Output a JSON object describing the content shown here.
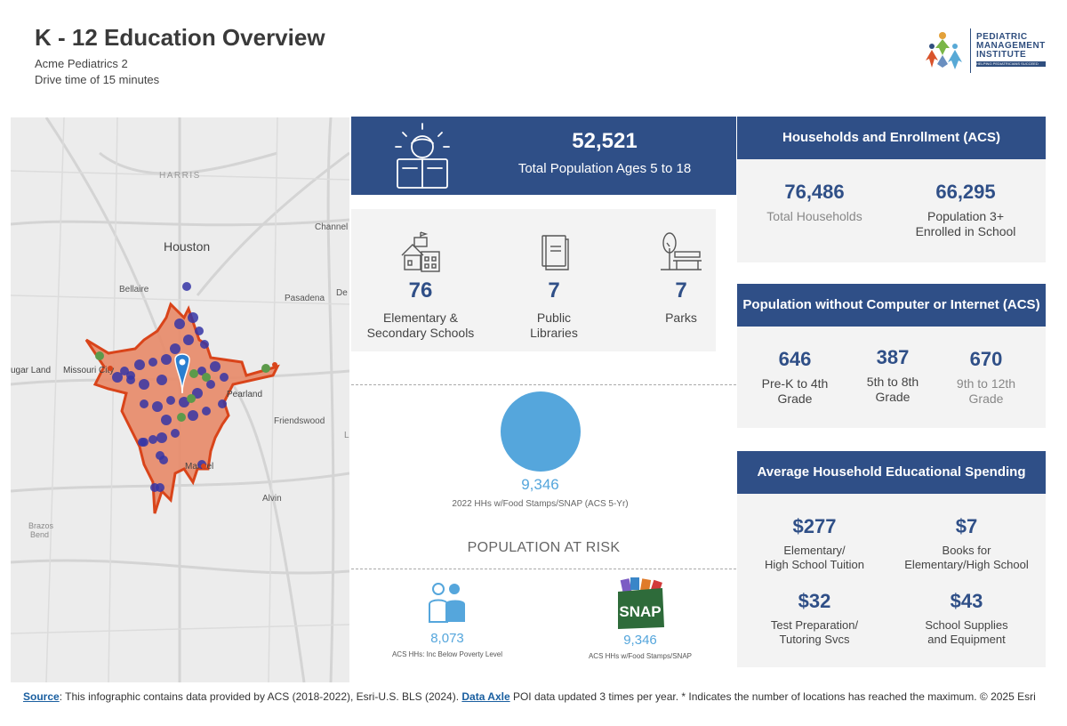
{
  "header": {
    "title": "K - 12 Education Overview",
    "location": "Acme Pediatrics 2",
    "drive_time": "Drive time of 15 minutes"
  },
  "logo": {
    "line1": "PEDIATRIC",
    "line2": "MANAGEMENT",
    "line3": "INSTITUTE",
    "tagline": "HELPING PEDIATRICIANS SUCCEED"
  },
  "map": {
    "labels": [
      "HARRIS",
      "Houston",
      "Channel",
      "Bellaire",
      "Pasadena",
      "De",
      "ugar Land",
      "Missouri City",
      "Pearland",
      "Friendswood",
      "Manvel",
      "Alvin",
      "Brazos",
      "Bend",
      "L"
    ],
    "colors": {
      "area": "#e88a68",
      "outline": "#d9441a",
      "point_blue": "#3535a6",
      "point_green": "#5c9a4a",
      "pin": "#2a7fd1"
    }
  },
  "population": {
    "value": "52,521",
    "label": "Total Population Ages 5 to 18"
  },
  "facilities": [
    {
      "icon": "school-icon",
      "value": "76",
      "label_line1": "Elementary &",
      "label_line2": "Secondary Schools"
    },
    {
      "icon": "book-icon",
      "value": "7",
      "label_line1": "Public",
      "label_line2": "Libraries"
    },
    {
      "icon": "park-icon",
      "value": "7",
      "label_line1": "Parks",
      "label_line2": ""
    }
  ],
  "food_stamps": {
    "value": "9,346",
    "label": "2022 HHs w/Food Stamps/SNAP (ACS 5-Yr)"
  },
  "population_at_risk": {
    "title": "POPULATION AT RISK",
    "poverty": {
      "value": "8,073",
      "label": "ACS HHs: Inc Below Poverty Level"
    },
    "snap": {
      "value": "9,346",
      "label": "ACS HHs w/Food Stamps/SNAP",
      "badge": "SNAP"
    }
  },
  "households_enrollment": {
    "title": "Households and Enrollment (ACS)",
    "total_households": {
      "value": "76,486",
      "label": "Total Households"
    },
    "enrolled": {
      "value": "66,295",
      "label_line1": "Population  3+",
      "label_line2": "Enrolled in School"
    }
  },
  "no_computer": {
    "title": "Population without Computer or  Internet (ACS)",
    "items": [
      {
        "value": "646",
        "label_line1": "Pre-K to 4th",
        "label_line2": "Grade"
      },
      {
        "value": "387",
        "label_line1": "5th to 8th",
        "label_line2": "Grade"
      },
      {
        "value": "670",
        "label_line1": "9th  to 12th",
        "label_line2": "Grade"
      }
    ]
  },
  "spending": {
    "title": "Average Household Educational Spending",
    "items": [
      {
        "value": "$277",
        "label_line1": "Elementary/",
        "label_line2": "High School Tuition"
      },
      {
        "value": "$7",
        "label_line1": "Books for",
        "label_line2": "Elementary/High School"
      },
      {
        "value": "$32",
        "label_line1": "Test Preparation/",
        "label_line2": "Tutoring Svcs"
      },
      {
        "value": "$43",
        "label_line1": "School Supplies",
        "label_line2": "and Equipment"
      }
    ]
  },
  "footer": {
    "source_link": "Source",
    "text1": ": This infographic contains data provided by ACS (2018-2022), Esri-U.S. BLS (2024). ",
    "data_axle_link": "Data Axle",
    "text2": " POI data updated 3 times per year. * Indicates the number of locations has reached the maximum. © 2025 Esri"
  }
}
